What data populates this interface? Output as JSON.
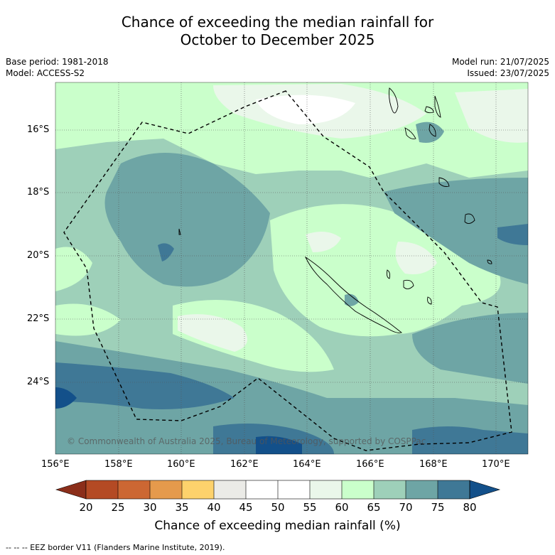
{
  "title_line1": "Chance of exceeding the median rainfall for",
  "title_line2": "October to December 2025",
  "base_period": "Base period: 1981-2018",
  "model": "Model: ACCESS-S2",
  "model_run": "Model run: 21/07/2025",
  "issued": "Issued: 23/07/2025",
  "copyright": "© Commonwealth of Australia 2025, Bureau of Meteorology, supported by COSPPac",
  "lat_labels": [
    "16°S",
    "18°S",
    "20°S",
    "22°S",
    "24°S"
  ],
  "lon_labels": [
    "156°E",
    "158°E",
    "160°E",
    "162°E",
    "164°E",
    "166°E",
    "168°E",
    "170°E"
  ],
  "colorbar": {
    "ticks": [
      "20",
      "25",
      "30",
      "35",
      "40",
      "45",
      "50",
      "55",
      "60",
      "65",
      "70",
      "75",
      "80"
    ],
    "colors": [
      "#8b2e1a",
      "#b44a24",
      "#cc6733",
      "#e59a4c",
      "#fdd26c",
      "#ebebe7",
      "#ffffff",
      "#ffffff",
      "#eaf7ea",
      "#caffcb",
      "#9ed0b9",
      "#6ea5a5",
      "#3f7896",
      "#13508a"
    ],
    "title": "Chance of exceeding median rainfall (%)"
  },
  "footnote": "--  --  -- EEZ border V11 (Flanders Marine Institute, 2019)."
}
